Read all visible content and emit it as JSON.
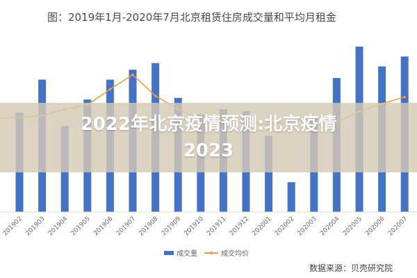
{
  "chart_data": {
    "type": "bar",
    "title": "图：2019年1月-2020年7月北京租赁住房成交量和平均月租金",
    "categories": [
      "201902",
      "201903",
      "201904",
      "201905",
      "201906",
      "201907",
      "201908",
      "201909",
      "201910",
      "201911",
      "201912",
      "202001",
      "202002",
      "202003",
      "202004",
      "202005",
      "202006",
      "202007"
    ],
    "series": [
      {
        "name": "成交量",
        "kind": "bar",
        "color": "#4472c4",
        "values": [
          60,
          80,
          52,
          68,
          80,
          86,
          90,
          69,
          59,
          62,
          61,
          46,
          18,
          57,
          81,
          100,
          88,
          94
        ]
      },
      {
        "name": "成交均价",
        "kind": "line",
        "color": "#ed9a4b",
        "values": [
          51,
          52,
          58,
          62,
          76,
          89,
          70,
          58,
          49,
          51,
          48,
          44,
          47,
          50,
          46,
          56,
          63,
          69
        ]
      }
    ],
    "legend_position": "bottom-center",
    "grid": false,
    "source": "数据来源：贝壳研究院"
  },
  "overlay": {
    "line1": "2022年北京疫情预测:北京疫情",
    "line2": "2023"
  },
  "colors": {
    "bar": "#4472c4",
    "line": "#ed9a4b",
    "overlay_band": "#d6c9b6",
    "overlay_text": "#ffffff"
  }
}
